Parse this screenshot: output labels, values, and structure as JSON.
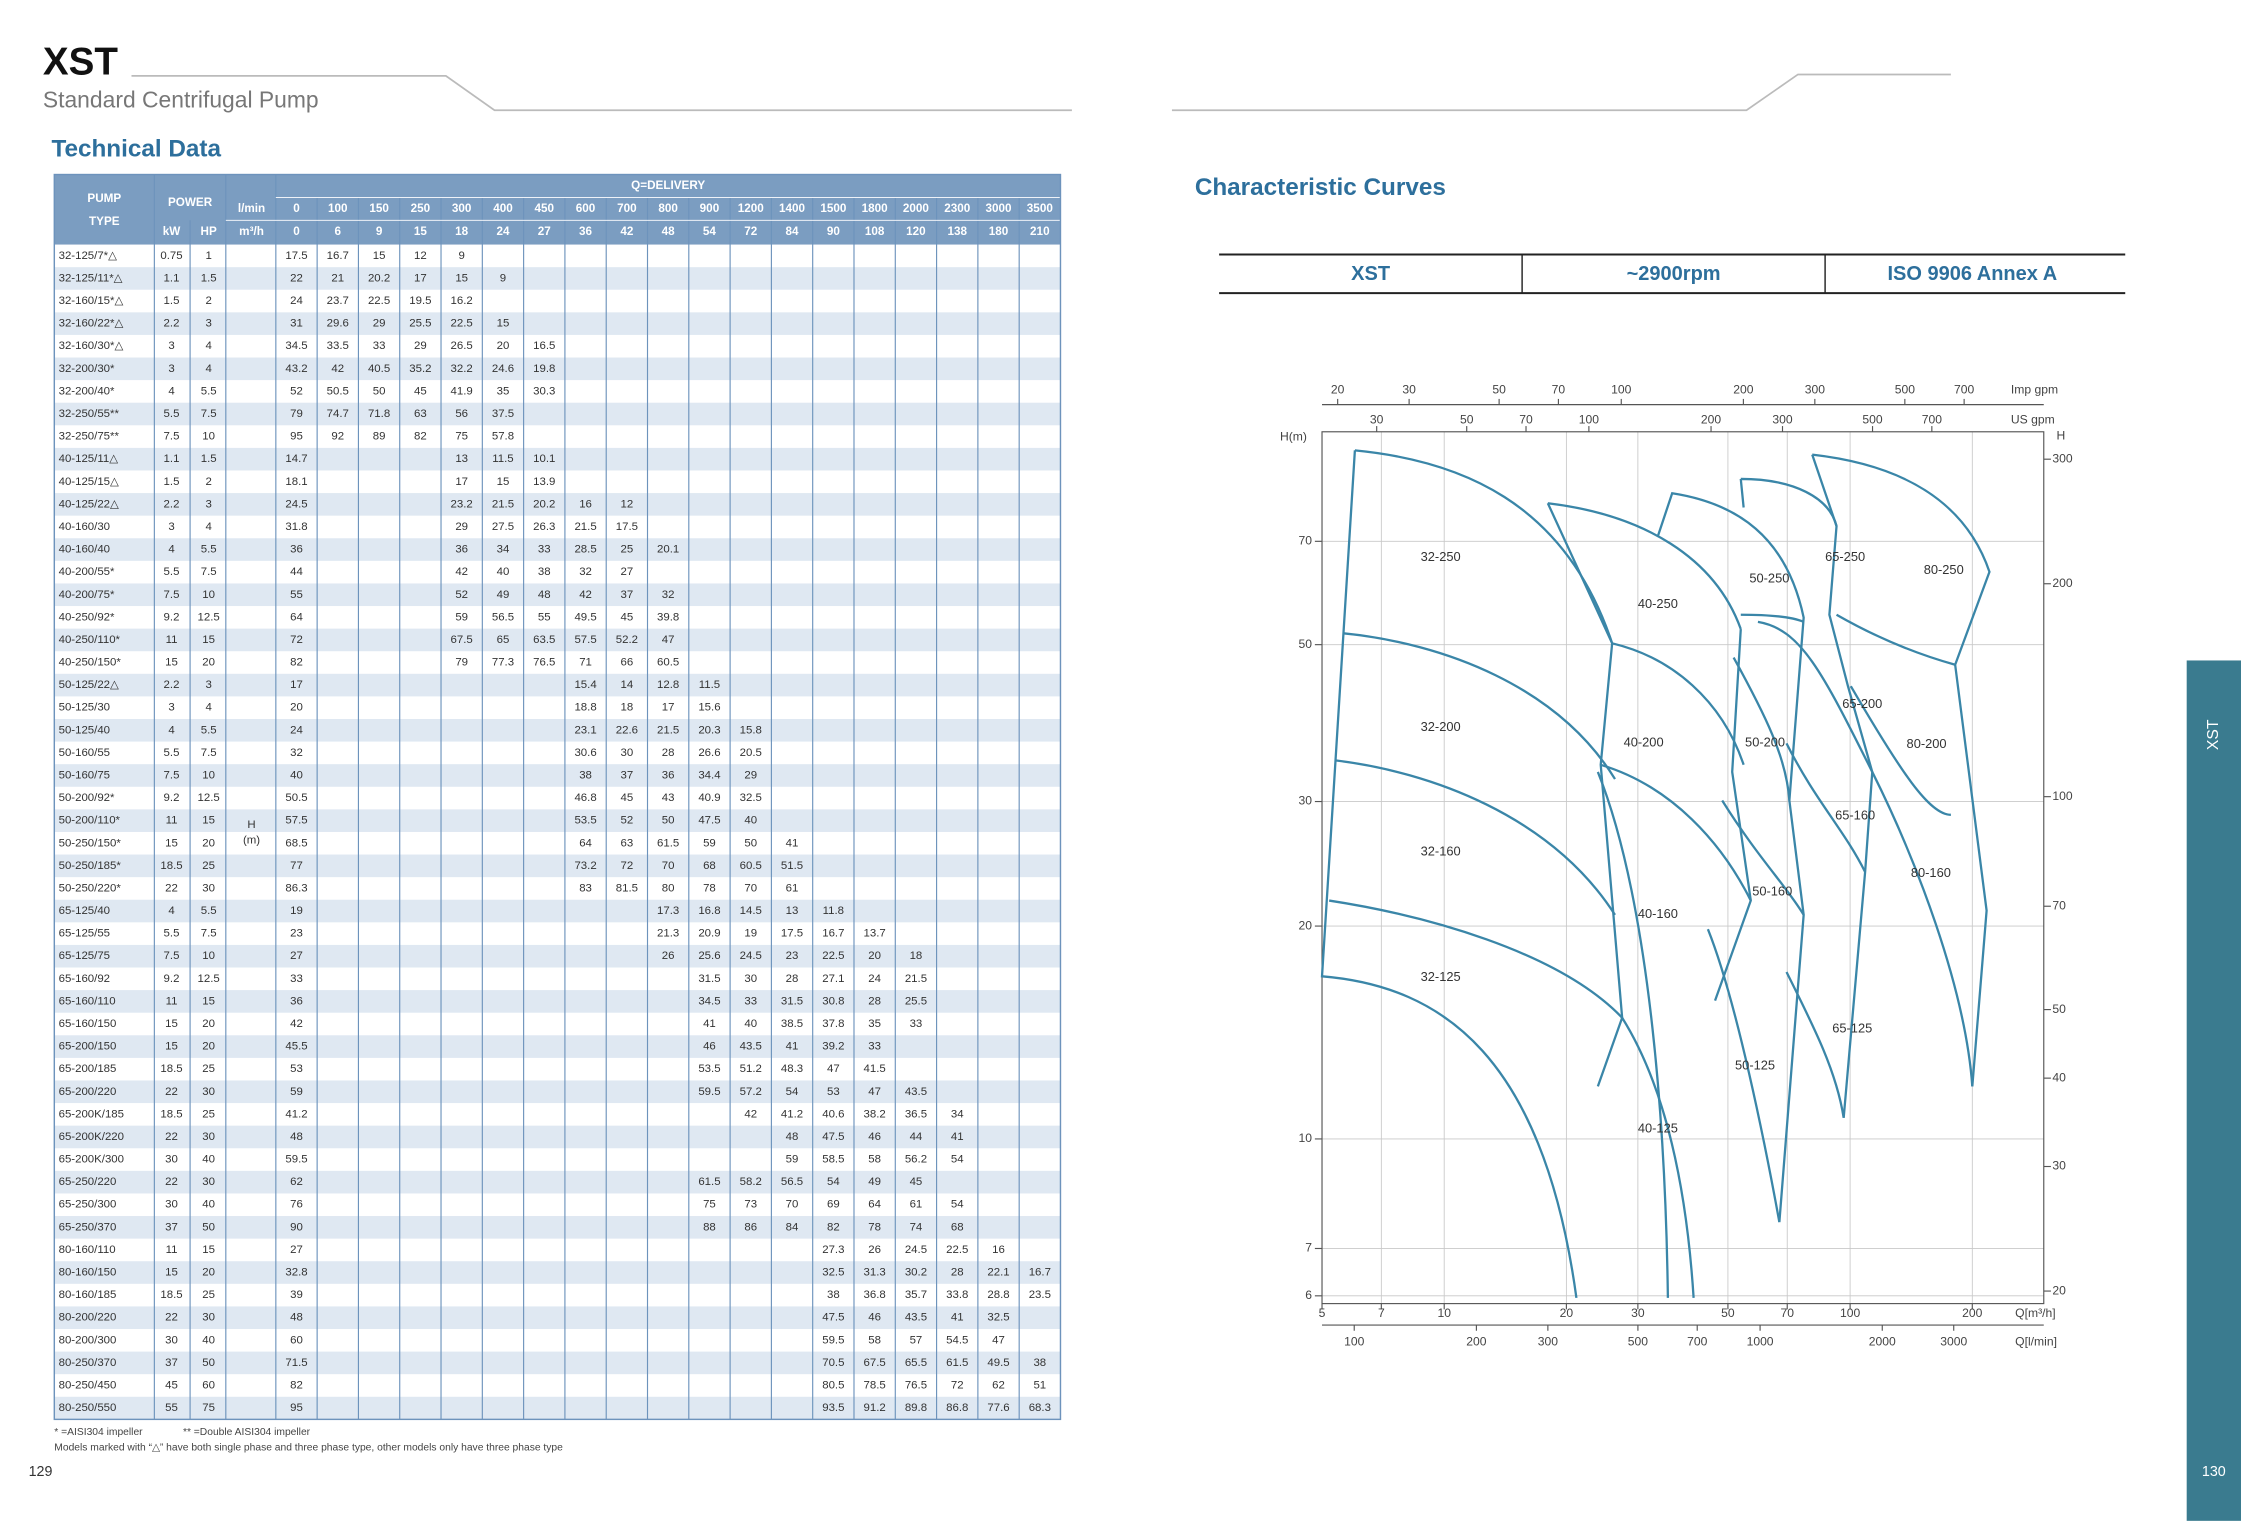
{
  "header": {
    "brand": "XST",
    "subtitle": "Standard Centrifugal Pump"
  },
  "technical_data": {
    "title": "Technical Data",
    "columns": {
      "pump_type": [
        "PUMP",
        "TYPE"
      ],
      "power": "POWER",
      "kw": "kW",
      "hp": "HP",
      "lpm_unit": "l/min",
      "m3h_unit": "m³/h",
      "delivery": "Q=DELIVERY",
      "head": [
        "H",
        "(m)"
      ],
      "lpm": [
        0,
        100,
        150,
        250,
        300,
        400,
        450,
        600,
        700,
        800,
        900,
        1200,
        1400,
        1500,
        1800,
        2000,
        2300,
        3000,
        3500
      ],
      "m3h": [
        0,
        6,
        9,
        15,
        18,
        24,
        27,
        36,
        42,
        48,
        54,
        72,
        84,
        90,
        108,
        120,
        138,
        180,
        210
      ]
    },
    "rows": [
      [
        "32-125/7*△",
        0.75,
        1,
        17.5,
        16.7,
        15,
        12,
        9,
        null,
        null,
        null,
        null,
        null,
        null,
        null,
        null,
        null,
        null,
        null,
        null,
        null,
        null
      ],
      [
        "32-125/11*△",
        1.1,
        1.5,
        22,
        21,
        20.2,
        17,
        15,
        9,
        null,
        null,
        null,
        null,
        null,
        null,
        null,
        null,
        null,
        null,
        null,
        null,
        null
      ],
      [
        "32-160/15*△",
        1.5,
        2,
        24,
        23.7,
        22.5,
        19.5,
        16.2,
        null,
        null,
        null,
        null,
        null,
        null,
        null,
        null,
        null,
        null,
        null,
        null,
        null,
        null
      ],
      [
        "32-160/22*△",
        2.2,
        3,
        31,
        29.6,
        29,
        25.5,
        22.5,
        15,
        null,
        null,
        null,
        null,
        null,
        null,
        null,
        null,
        null,
        null,
        null,
        null,
        null
      ],
      [
        "32-160/30*△",
        3,
        4,
        34.5,
        33.5,
        33,
        29,
        26.5,
        20,
        16.5,
        null,
        null,
        null,
        null,
        null,
        null,
        null,
        null,
        null,
        null,
        null,
        null
      ],
      [
        "32-200/30*",
        3,
        4,
        43.2,
        42,
        40.5,
        35.2,
        32.2,
        24.6,
        19.8,
        null,
        null,
        null,
        null,
        null,
        null,
        null,
        null,
        null,
        null,
        null,
        null
      ],
      [
        "32-200/40*",
        4,
        5.5,
        52,
        50.5,
        50,
        45,
        41.9,
        35,
        30.3,
        null,
        null,
        null,
        null,
        null,
        null,
        null,
        null,
        null,
        null,
        null,
        null
      ],
      [
        "32-250/55**",
        5.5,
        7.5,
        79,
        74.7,
        71.8,
        63,
        56,
        37.5,
        null,
        null,
        null,
        null,
        null,
        null,
        null,
        null,
        null,
        null,
        null,
        null,
        null
      ],
      [
        "32-250/75**",
        7.5,
        10,
        95,
        92,
        89,
        82,
        75,
        57.8,
        null,
        null,
        null,
        null,
        null,
        null,
        null,
        null,
        null,
        null,
        null,
        null,
        null
      ],
      [
        "40-125/11△",
        1.1,
        1.5,
        14.7,
        null,
        null,
        null,
        13,
        11.5,
        10.1,
        null,
        null,
        null,
        null,
        null,
        null,
        null,
        null,
        null,
        null,
        null,
        null
      ],
      [
        "40-125/15△",
        1.5,
        2,
        18.1,
        null,
        null,
        null,
        17,
        15,
        13.9,
        null,
        null,
        null,
        null,
        null,
        null,
        null,
        null,
        null,
        null,
        null,
        null
      ],
      [
        "40-125/22△",
        2.2,
        3,
        24.5,
        null,
        null,
        null,
        23.2,
        21.5,
        20.2,
        16,
        12,
        null,
        null,
        null,
        null,
        null,
        null,
        null,
        null,
        null,
        null
      ],
      [
        "40-160/30",
        3,
        4,
        31.8,
        null,
        null,
        null,
        29,
        27.5,
        26.3,
        21.5,
        17.5,
        null,
        null,
        null,
        null,
        null,
        null,
        null,
        null,
        null,
        null
      ],
      [
        "40-160/40",
        4,
        5.5,
        36,
        null,
        null,
        null,
        36,
        34,
        33,
        28.5,
        25,
        20.1,
        null,
        null,
        null,
        null,
        null,
        null,
        null,
        null,
        null
      ],
      [
        "40-200/55*",
        5.5,
        7.5,
        44,
        null,
        null,
        null,
        42,
        40,
        38,
        32,
        27,
        null,
        null,
        null,
        null,
        null,
        null,
        null,
        null,
        null,
        null
      ],
      [
        "40-200/75*",
        7.5,
        10,
        55,
        null,
        null,
        null,
        52,
        49,
        48,
        42,
        37,
        32,
        null,
        null,
        null,
        null,
        null,
        null,
        null,
        null,
        null
      ],
      [
        "40-250/92*",
        9.2,
        12.5,
        64,
        null,
        null,
        null,
        59,
        56.5,
        55,
        49.5,
        45,
        39.8,
        null,
        null,
        null,
        null,
        null,
        null,
        null,
        null,
        null
      ],
      [
        "40-250/110*",
        11,
        15,
        72,
        null,
        null,
        null,
        67.5,
        65,
        63.5,
        57.5,
        52.2,
        47,
        null,
        null,
        null,
        null,
        null,
        null,
        null,
        null,
        null
      ],
      [
        "40-250/150*",
        15,
        20,
        82,
        null,
        null,
        null,
        79,
        77.3,
        76.5,
        71,
        66,
        60.5,
        null,
        null,
        null,
        null,
        null,
        null,
        null,
        null,
        null
      ],
      [
        "50-125/22△",
        2.2,
        3,
        17,
        null,
        null,
        null,
        null,
        null,
        null,
        15.4,
        14,
        12.8,
        11.5,
        null,
        null,
        null,
        null,
        null,
        null,
        null,
        null
      ],
      [
        "50-125/30",
        3,
        4,
        20,
        null,
        null,
        null,
        null,
        null,
        null,
        18.8,
        18,
        17,
        15.6,
        null,
        null,
        null,
        null,
        null,
        null,
        null,
        null
      ],
      [
        "50-125/40",
        4,
        5.5,
        24,
        null,
        null,
        null,
        null,
        null,
        null,
        23.1,
        22.6,
        21.5,
        20.3,
        15.8,
        null,
        null,
        null,
        null,
        null,
        null,
        null
      ],
      [
        "50-160/55",
        5.5,
        7.5,
        32,
        null,
        null,
        null,
        null,
        null,
        null,
        30.6,
        30,
        28,
        26.6,
        20.5,
        null,
        null,
        null,
        null,
        null,
        null,
        null
      ],
      [
        "50-160/75",
        7.5,
        10,
        40,
        null,
        null,
        null,
        null,
        null,
        null,
        38,
        37,
        36,
        34.4,
        29,
        null,
        null,
        null,
        null,
        null,
        null,
        null
      ],
      [
        "50-200/92*",
        9.2,
        12.5,
        50.5,
        null,
        null,
        null,
        null,
        null,
        null,
        46.8,
        45,
        43,
        40.9,
        32.5,
        null,
        null,
        null,
        null,
        null,
        null,
        null
      ],
      [
        "50-200/110*",
        11,
        15,
        57.5,
        null,
        null,
        null,
        null,
        null,
        null,
        53.5,
        52,
        50,
        47.5,
        40,
        null,
        null,
        null,
        null,
        null,
        null,
        null
      ],
      [
        "50-250/150*",
        15,
        20,
        68.5,
        null,
        null,
        null,
        null,
        null,
        null,
        64,
        63,
        61.5,
        59,
        50,
        41,
        null,
        null,
        null,
        null,
        null,
        null
      ],
      [
        "50-250/185*",
        18.5,
        25,
        77,
        null,
        null,
        null,
        null,
        null,
        null,
        73.2,
        72,
        70,
        68,
        60.5,
        51.5,
        null,
        null,
        null,
        null,
        null,
        null
      ],
      [
        "50-250/220*",
        22,
        30,
        86.3,
        null,
        null,
        null,
        null,
        null,
        null,
        83,
        81.5,
        80,
        78,
        70,
        61,
        null,
        null,
        null,
        null,
        null,
        null
      ],
      [
        "65-125/40",
        4,
        5.5,
        19,
        null,
        null,
        null,
        null,
        null,
        null,
        null,
        null,
        17.3,
        16.8,
        14.5,
        13,
        11.8,
        null,
        null,
        null,
        null,
        null
      ],
      [
        "65-125/55",
        5.5,
        7.5,
        23,
        null,
        null,
        null,
        null,
        null,
        null,
        null,
        null,
        21.3,
        20.9,
        19,
        17.5,
        16.7,
        13.7,
        null,
        null,
        null,
        null
      ],
      [
        "65-125/75",
        7.5,
        10,
        27,
        null,
        null,
        null,
        null,
        null,
        null,
        null,
        null,
        26,
        25.6,
        24.5,
        23,
        22.5,
        20,
        18,
        null,
        null,
        null
      ],
      [
        "65-160/92",
        9.2,
        12.5,
        33,
        null,
        null,
        null,
        null,
        null,
        null,
        null,
        null,
        null,
        31.5,
        30,
        28,
        27.1,
        24,
        21.5,
        null,
        null,
        null
      ],
      [
        "65-160/110",
        11,
        15,
        36,
        null,
        null,
        null,
        null,
        null,
        null,
        null,
        null,
        null,
        34.5,
        33,
        31.5,
        30.8,
        28,
        25.5,
        null,
        null,
        null
      ],
      [
        "65-160/150",
        15,
        20,
        42,
        null,
        null,
        null,
        null,
        null,
        null,
        null,
        null,
        null,
        41,
        40,
        38.5,
        37.8,
        35,
        33,
        null,
        null,
        null
      ],
      [
        "65-200/150",
        15,
        20,
        45.5,
        null,
        null,
        null,
        null,
        null,
        null,
        null,
        null,
        null,
        46,
        43.5,
        41,
        39.2,
        33,
        null,
        null,
        null,
        null
      ],
      [
        "65-200/185",
        18.5,
        25,
        53,
        null,
        null,
        null,
        null,
        null,
        null,
        null,
        null,
        null,
        53.5,
        51.2,
        48.3,
        47,
        41.5,
        null,
        null,
        null,
        null
      ],
      [
        "65-200/220",
        22,
        30,
        59,
        null,
        null,
        null,
        null,
        null,
        null,
        null,
        null,
        null,
        59.5,
        57.2,
        54,
        53,
        47,
        43.5,
        null,
        null,
        null
      ],
      [
        "65-200K/185",
        18.5,
        25,
        41.2,
        null,
        null,
        null,
        null,
        null,
        null,
        null,
        null,
        null,
        null,
        42,
        41.2,
        40.6,
        38.2,
        36.5,
        34,
        null,
        null
      ],
      [
        "65-200K/220",
        22,
        30,
        48,
        null,
        null,
        null,
        null,
        null,
        null,
        null,
        null,
        null,
        null,
        null,
        48,
        47.5,
        46,
        44,
        41,
        null,
        null
      ],
      [
        "65-200K/300",
        30,
        40,
        59.5,
        null,
        null,
        null,
        null,
        null,
        null,
        null,
        null,
        null,
        null,
        null,
        59,
        58.5,
        58,
        56.2,
        54,
        null,
        null
      ],
      [
        "65-250/220",
        22,
        30,
        62,
        null,
        null,
        null,
        null,
        null,
        null,
        null,
        null,
        null,
        61.5,
        58.2,
        56.5,
        54,
        49,
        45,
        null,
        null,
        null
      ],
      [
        "65-250/300",
        30,
        40,
        76,
        null,
        null,
        null,
        null,
        null,
        null,
        null,
        null,
        null,
        75,
        73,
        70,
        69,
        64,
        61,
        54,
        null,
        null
      ],
      [
        "65-250/370",
        37,
        50,
        90,
        null,
        null,
        null,
        null,
        null,
        null,
        null,
        null,
        null,
        88,
        86,
        84,
        82,
        78,
        74,
        68,
        null,
        null
      ],
      [
        "80-160/110",
        11,
        15,
        27,
        null,
        null,
        null,
        null,
        null,
        null,
        null,
        null,
        null,
        null,
        null,
        null,
        27.3,
        26,
        24.5,
        22.5,
        16,
        null
      ],
      [
        "80-160/150",
        15,
        20,
        32.8,
        null,
        null,
        null,
        null,
        null,
        null,
        null,
        null,
        null,
        null,
        null,
        null,
        32.5,
        31.3,
        30.2,
        28,
        22.1,
        16.7
      ],
      [
        "80-160/185",
        18.5,
        25,
        39,
        null,
        null,
        null,
        null,
        null,
        null,
        null,
        null,
        null,
        null,
        null,
        null,
        38,
        36.8,
        35.7,
        33.8,
        28.8,
        23.5
      ],
      [
        "80-200/220",
        22,
        30,
        48,
        null,
        null,
        null,
        null,
        null,
        null,
        null,
        null,
        null,
        null,
        null,
        null,
        47.5,
        46,
        43.5,
        41,
        32.5,
        null
      ],
      [
        "80-200/300",
        30,
        40,
        60,
        null,
        null,
        null,
        null,
        null,
        null,
        null,
        null,
        null,
        null,
        null,
        null,
        59.5,
        58,
        57,
        54.5,
        47,
        null
      ],
      [
        "80-250/370",
        37,
        50,
        71.5,
        null,
        null,
        null,
        null,
        null,
        null,
        null,
        null,
        null,
        null,
        null,
        null,
        70.5,
        67.5,
        65.5,
        61.5,
        49.5,
        38
      ],
      [
        "80-250/450",
        45,
        60,
        82,
        null,
        null,
        null,
        null,
        null,
        null,
        null,
        null,
        null,
        null,
        null,
        null,
        80.5,
        78.5,
        76.5,
        72,
        62,
        51
      ],
      [
        "80-250/550",
        55,
        75,
        95,
        null,
        null,
        null,
        null,
        null,
        null,
        null,
        null,
        null,
        null,
        null,
        null,
        93.5,
        91.2,
        89.8,
        86.8,
        77.6,
        68.3
      ]
    ],
    "notes": [
      "* =AISI304 impeller",
      "** =Double AISI304 impeller",
      "Models marked with “△” have both single phase and three phase type, other models only have three phase type"
    ]
  },
  "curves": {
    "title": "Characteristic Curves",
    "badges": [
      "XST",
      "~2900rpm",
      "ISO 9906 Annex A"
    ],
    "axes": {
      "q_m3h": {
        "label": "Q[m³/h]",
        "lim": [
          5,
          300
        ],
        "ticks": [
          5,
          7,
          10,
          20,
          30,
          50,
          70,
          100,
          200
        ]
      },
      "q_lpm": {
        "label": "Q[l/min]",
        "lim": [
          83.3,
          5000
        ],
        "ticks": [
          100,
          200,
          300,
          500,
          700,
          1000,
          2000,
          3000
        ]
      },
      "imp_gpm": {
        "label": "Imp gpm",
        "lim": [
          18.3,
          1100
        ],
        "ticks": [
          20,
          30,
          50,
          70,
          100,
          200,
          300,
          500,
          700
        ]
      },
      "us_gpm": {
        "label": "US gpm",
        "lim": [
          22,
          1321
        ],
        "ticks": [
          30,
          50,
          70,
          100,
          200,
          300,
          500,
          700
        ]
      },
      "h_m": {
        "label": "H(m)",
        "lim": [
          5.85,
          100
        ],
        "ticks": [
          70,
          50,
          30,
          20,
          10,
          7,
          6
        ]
      },
      "h_ft": {
        "label": "H",
        "lim": [
          19.2,
          328
        ],
        "ticks": [
          300,
          200,
          100,
          70,
          50,
          40,
          30,
          20
        ]
      }
    },
    "labels": [
      "32-250",
      "32-200",
      "32-160",
      "32-125",
      "40-250",
      "40-200",
      "40-160",
      "40-125",
      "50-250",
      "50-200",
      "50-160",
      "50-125",
      "65-250",
      "65-200",
      "65-160",
      "65-125",
      "80-250",
      "80-200",
      "80-160"
    ]
  },
  "pages": [
    "129",
    "130"
  ],
  "tab": "XST"
}
